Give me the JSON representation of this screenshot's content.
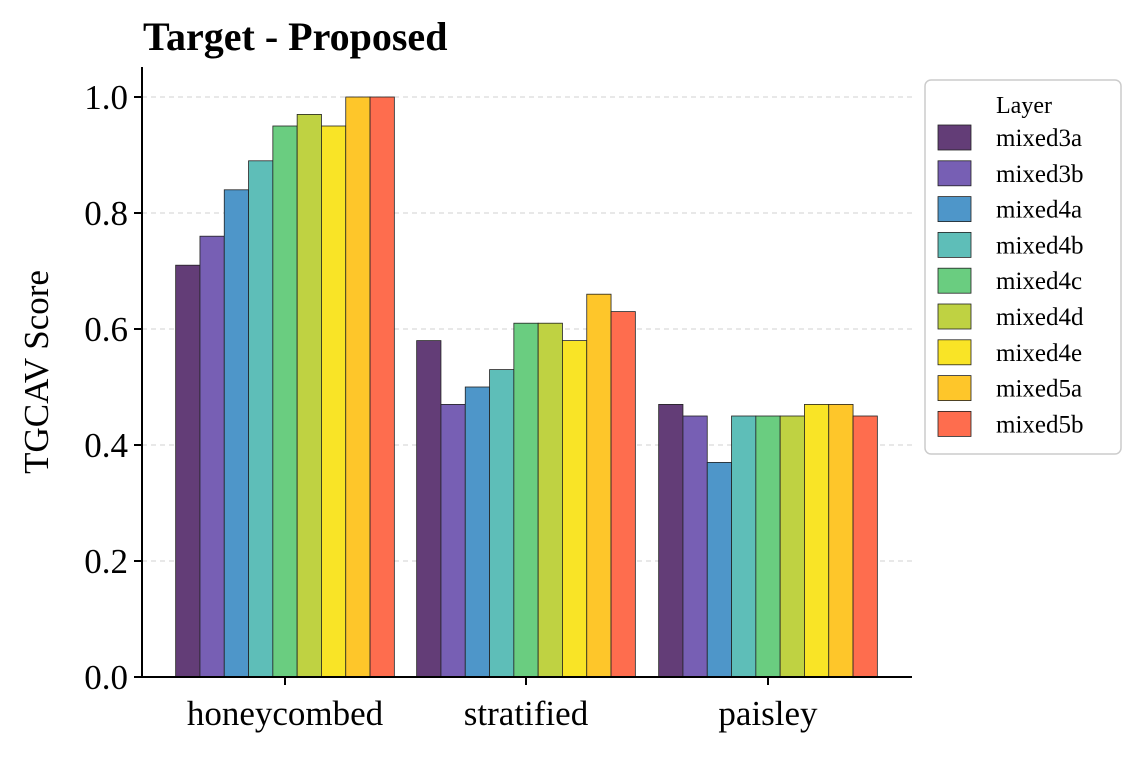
{
  "chart_data": {
    "type": "bar",
    "title": "Target - Proposed",
    "xlabel": "",
    "ylabel": "TGCAV Score",
    "ylim": [
      0,
      1.05
    ],
    "yticks": [
      0.0,
      0.2,
      0.4,
      0.6,
      0.8,
      1.0
    ],
    "ytick_labels": [
      "0.0",
      "0.2",
      "0.4",
      "0.6",
      "0.8",
      "1.0"
    ],
    "grid": true,
    "categories": [
      "honeycombed",
      "stratified",
      "paisley"
    ],
    "legend": {
      "title": "Layer",
      "placement": "outside-right-top"
    },
    "series": [
      {
        "name": "mixed3a",
        "color": "#633d77",
        "values": [
          0.71,
          0.58,
          0.47
        ]
      },
      {
        "name": "mixed3b",
        "color": "#775fb4",
        "values": [
          0.76,
          0.47,
          0.45
        ]
      },
      {
        "name": "mixed4a",
        "color": "#4e96c9",
        "values": [
          0.84,
          0.5,
          0.37
        ]
      },
      {
        "name": "mixed4b",
        "color": "#5ebeb8",
        "values": [
          0.89,
          0.53,
          0.45
        ]
      },
      {
        "name": "mixed4c",
        "color": "#6acd80",
        "values": [
          0.95,
          0.61,
          0.45
        ]
      },
      {
        "name": "mixed4d",
        "color": "#bfd242",
        "values": [
          0.97,
          0.61,
          0.45
        ]
      },
      {
        "name": "mixed4e",
        "color": "#f9e426",
        "values": [
          0.95,
          0.58,
          0.47
        ]
      },
      {
        "name": "mixed5a",
        "color": "#fec62a",
        "values": [
          1.0,
          0.66,
          0.47
        ]
      },
      {
        "name": "mixed5b",
        "color": "#fe6d4e",
        "values": [
          1.0,
          0.63,
          0.45
        ]
      }
    ]
  }
}
